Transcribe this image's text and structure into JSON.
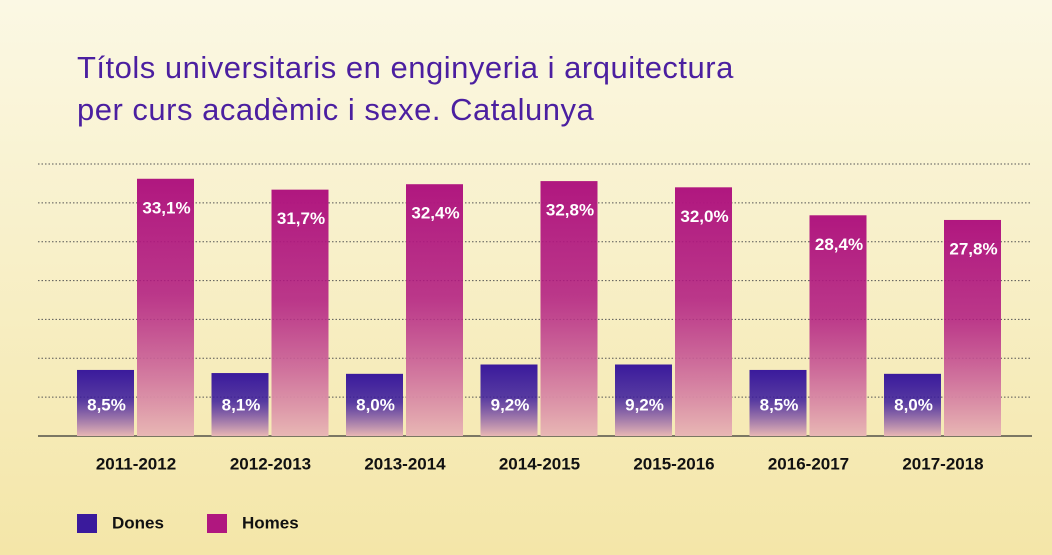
{
  "chart_data": {
    "type": "bar",
    "title": [
      "Títols universitaris en enginyeria i arquitectura",
      "per curs acadèmic i sexe. Catalunya"
    ],
    "categories": [
      "2011-2012",
      "2012-2013",
      "2013-2014",
      "2014-2015",
      "2015-2016",
      "2016-2017",
      "2017-2018"
    ],
    "series": [
      {
        "name": "Dones",
        "color": "#3a1a9c",
        "values": [
          8.5,
          8.1,
          8.0,
          9.2,
          9.2,
          8.5,
          8.0
        ],
        "value_labels": [
          "8,5%",
          "8,1%",
          "8,0%",
          "9,2%",
          "9,2%",
          "8,5%",
          "8,0%"
        ]
      },
      {
        "name": "Homes",
        "color": "#b0177f",
        "values": [
          33.1,
          31.7,
          32.4,
          32.8,
          32.0,
          28.4,
          27.8
        ],
        "value_labels": [
          "33,1%",
          "31,7%",
          "32,4%",
          "32,8%",
          "32,0%",
          "28,4%",
          "27,8%"
        ]
      }
    ],
    "ylim": [
      0,
      35
    ],
    "yticks": [
      5,
      10,
      15,
      20,
      25,
      30,
      35
    ],
    "grid": true,
    "legend": "bottom-left"
  }
}
